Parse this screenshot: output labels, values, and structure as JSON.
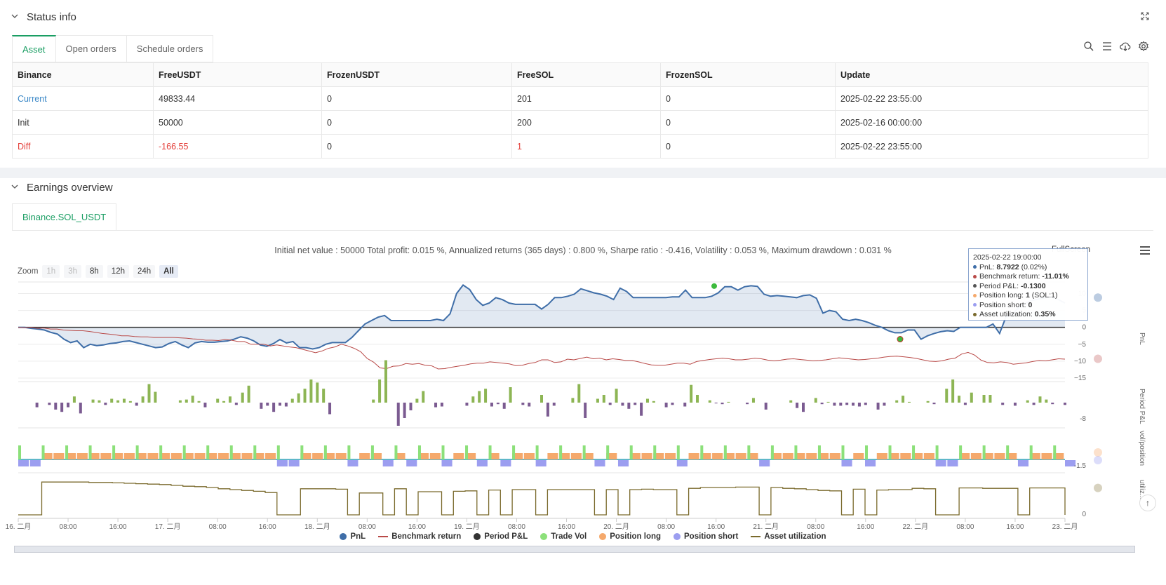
{
  "status": {
    "title": "Status info",
    "tabs": [
      "Asset",
      "Open orders",
      "Schedule orders"
    ],
    "table": {
      "headers": [
        "Binance",
        "FreeUSDT",
        "FrozenUSDT",
        "FreeSOL",
        "FrozenSOL",
        "Update"
      ],
      "rows": [
        [
          "Current",
          "49833.44",
          "0",
          "201",
          "0",
          "2025-02-22 23:55:00"
        ],
        [
          "Init",
          "50000",
          "0",
          "200",
          "0",
          "2025-02-16 00:00:00"
        ],
        [
          "Diff",
          "-166.55",
          "0",
          "1",
          "0",
          "2025-02-22 23:55:00"
        ]
      ]
    },
    "icons": [
      "search-icon",
      "list-icon",
      "cloud-download-icon",
      "gear-icon"
    ]
  },
  "earnings": {
    "title": "Earnings overview",
    "tab": "Binance.SOL_USDT",
    "summary": "Initial net value : 50000 Total profit: 0.015 %, Annualized returns (365 days) : 0.800 %, Sharpe ratio : -0.416, Volatility : 0.053 %, Maximum drawdown : 0.031 %",
    "zoom_label": "Zoom",
    "zoom_buttons": [
      "1h",
      "3h",
      "8h",
      "12h",
      "24h",
      "All"
    ],
    "fullscreen": "FullScreen",
    "tooltip": {
      "time": "2025-02-22 19:00:00",
      "pnl_label": "PnL: ",
      "pnl_value": "8.7922",
      "pnl_extra": " (0.02%)",
      "bench_label": "Benchmark return: ",
      "bench_value": "-11.01%",
      "period_label": "Period P&L: ",
      "period_value": "-0.1300",
      "long_label": "Position long: ",
      "long_value": "1",
      "long_extra": " (SOL:1)",
      "short_label": "Position short: ",
      "short_value": "0",
      "util_label": "Asset utilization: ",
      "util_value": "0.35%"
    },
    "legend": [
      "PnL",
      "Benchmark return",
      "Period P&L",
      "Trade Vol",
      "Position long",
      "Position short",
      "Asset utilization"
    ],
    "colors": {
      "pnl": "#3f6ea8",
      "bench": "#b94a48",
      "period_pos": "#8db554",
      "period_neg": "#7b5b91",
      "trade_vol": "#8ce07a",
      "long": "#f5a96c",
      "short": "#9c9ef0",
      "util": "#7a6a2c"
    }
  },
  "chart_data": {
    "type": "line",
    "x_ticks": [
      "16. 二月",
      "08:00",
      "16:00",
      "17. 二月",
      "08:00",
      "16:00",
      "18. 二月",
      "08:00",
      "16:00",
      "19. 二月",
      "08:00",
      "16:00",
      "20. 二月",
      "08:00",
      "16:00",
      "21. 二月",
      "08:00",
      "16:00",
      "22. 二月",
      "08:00",
      "16:00",
      "23. 二月"
    ],
    "pnl_axis": {
      "ticks": [
        10,
        5,
        0,
        -5,
        -10,
        -15
      ],
      "ylabel": "PnL",
      "ylim": [
        -15,
        13
      ]
    },
    "period_axis": {
      "ticks": [
        -8
      ],
      "ylabel": "Period P&L"
    },
    "vol_axis": {
      "ticks": [
        -1.5
      ],
      "ylabel": "vol/position"
    },
    "util_axis": {
      "ticks": [
        0
      ],
      "ylabel": "utiliz...n"
    },
    "series": [
      {
        "name": "PnL",
        "values": [
          0,
          0,
          -0.3,
          -0.5,
          -0.8,
          -1.5,
          -2,
          -3.5,
          -4.5,
          -4,
          -6,
          -5,
          -5.4,
          -5.2,
          -4.8,
          -4.6,
          -4.2,
          -4,
          -4.5,
          -5,
          -5.5,
          -6,
          -5.8,
          -4.8,
          -4.2,
          -5.2,
          -6,
          -4.6,
          -4.2,
          -4.4,
          -4.4,
          -4.2,
          -4,
          -3.5,
          -2.8,
          -3.2,
          -4,
          -5.2,
          -5.6,
          -4.8,
          -3.6,
          -4.6,
          -4.2,
          -6,
          -6,
          -6.4,
          -6,
          -5,
          -4.5,
          -4.5,
          -4.5,
          -3,
          -1,
          1,
          2,
          3,
          3.5,
          2,
          2,
          2,
          2,
          2,
          2,
          2,
          2.4,
          2,
          4,
          10,
          12.5,
          11.2,
          8.2,
          6.5,
          7.2,
          8.8,
          8.2,
          7.2,
          6.8,
          6.8,
          6.8,
          6.8,
          5.4,
          6.8,
          8.8,
          8.8,
          9.2,
          9.8,
          11.4,
          10.8,
          10.2,
          9.8,
          9.2,
          8.2,
          11.6,
          10.6,
          8.8,
          8.8,
          8.8,
          8.8,
          8.8,
          8.8,
          9,
          9,
          11,
          8.8,
          8.8,
          8.8,
          9.2,
          10.2,
          12,
          12,
          11,
          12,
          12.3,
          12.1,
          9.8,
          9.2,
          9.4,
          9.2,
          9,
          8.8,
          9.4,
          9.6,
          8.6,
          4.2,
          5,
          4.6,
          2.4,
          2,
          2.4,
          2,
          1.4,
          0.6,
          0,
          -1,
          -1.6,
          -1.6,
          -0.8,
          -0.8,
          -3.5,
          -2.5,
          -1.8,
          -1.3,
          -1,
          -1.2,
          0,
          0,
          0,
          0,
          0,
          1,
          -1.8,
          3.2,
          4,
          6,
          7.2,
          8,
          8.4,
          8.8,
          9,
          8.2,
          7.2
        ]
      },
      {
        "name": "Benchmark return",
        "values": [
          0,
          -0.1,
          0,
          -0.3,
          -0.2,
          -0.5,
          -0.5,
          -0.8,
          -0.9,
          -1,
          -1,
          -1.2,
          -1.5,
          -1.8,
          -2,
          -2.2,
          -2.5,
          -2.5,
          -2.7,
          -2.8,
          -2.8,
          -3,
          -3,
          -3,
          -3,
          -3.1,
          -3.2,
          -3.4,
          -3.5,
          -3.8,
          -3.8,
          -3.9,
          -3.6,
          -3.8,
          -4.2,
          -4.2,
          -5,
          -5,
          -5,
          -5.5,
          -5.2,
          -5.5,
          -5.8,
          -6,
          -6.5,
          -7,
          -7.5,
          -7,
          -6.2,
          -5.8,
          -5,
          -5.5,
          -6.2,
          -7.2,
          -9.2,
          -10.3,
          -12,
          -12.2,
          -11.5,
          -11.4,
          -10.7,
          -10.9,
          -10.7,
          -11.2,
          -11.4,
          -12.3,
          -12.2,
          -11.8,
          -11.5,
          -11.2,
          -10.8,
          -10.6,
          -10.6,
          -10.2,
          -10.4,
          -10.6,
          -10.8,
          -11.3,
          -11.2,
          -10.7,
          -10.4,
          -9.6,
          -9.6,
          -10.4,
          -10.2,
          -9.4,
          -9.6,
          -9.2,
          -8.8,
          -9.3,
          -9.1,
          -9.6,
          -9.3,
          -9.5,
          -9.8,
          -9.8,
          -10.2,
          -10.7,
          -11.1,
          -11.2,
          -11.2,
          -10.9,
          -10.6,
          -10.6,
          -10.9,
          -10.1,
          -9.8,
          -9.5,
          -9.3,
          -9.1,
          -9.3,
          -9.6,
          -9.6,
          -9.4,
          -9.1,
          -9.3,
          -9.7,
          -9.9,
          -9.7,
          -9.4,
          -9.3,
          -9.5,
          -9.7,
          -9.9,
          -9.8,
          -9.6,
          -9.3,
          -9,
          -9.2,
          -9.4,
          -9.6,
          -9.5,
          -9.3,
          -9.1,
          -8.8,
          -8.6,
          -8.5,
          -8.7,
          -8.9,
          -9.2,
          -9.6,
          -10,
          -10.1,
          -9.9,
          -9.4,
          -9.1,
          -7.9,
          -7.4,
          -8.2,
          -9.7,
          -10.4,
          -10.5,
          -10.2,
          -10.4,
          -10.9,
          -10.7,
          -10.5,
          -10.1,
          -9.8,
          -9.9,
          -9.6,
          -9.3,
          -9.4
        ]
      },
      {
        "name": "Period P&L",
        "values": [
          0,
          0,
          0,
          -0.6,
          0,
          -0.3,
          -0.9,
          -1.2,
          -0.6,
          0.8,
          -1.4,
          0,
          0.4,
          0.3,
          -0.3,
          0.5,
          0.3,
          0.5,
          0.2,
          -0.4,
          0.8,
          2.4,
          1.4,
          0,
          0,
          0,
          0.3,
          0.4,
          0.9,
          0.2,
          -0.6,
          0,
          0.5,
          0.2,
          0.8,
          -0.3,
          1.3,
          2.2,
          0,
          -0.8,
          -0.4,
          -1.2,
          -0.4,
          -0.5,
          0.5,
          1.2,
          1.8,
          3,
          2.6,
          1.8,
          -1.5,
          0,
          0,
          0,
          0,
          0,
          0,
          0.4,
          3,
          5.5,
          0,
          -3,
          -2,
          -1,
          0.5,
          1.5,
          0,
          -0.6,
          -0.5,
          0,
          0,
          0,
          -0.4,
          0.8,
          1.5,
          1.8,
          -0.5,
          -0.2,
          -0.8,
          2,
          0,
          -0.3,
          -0.5,
          0,
          1,
          -1.8,
          -0.4,
          0,
          0,
          0.6,
          2.4,
          -2,
          0,
          0.5,
          1,
          -0.3,
          1.8,
          -0.4,
          -0.8,
          -0.3,
          -1.7,
          0.5,
          0.2,
          0,
          -0.6,
          -0.3,
          0,
          -0.5,
          2.3,
          1,
          0,
          0.3,
          -0.1,
          -0.2,
          0.1,
          0,
          0,
          -0.2,
          0.6,
          0,
          -0.9,
          0,
          0,
          0,
          0.3,
          -0.7,
          -1.2,
          0,
          0.6,
          -0.2,
          0.1,
          -0.4,
          -0.4,
          -0.3,
          -0.4,
          -0.5,
          -0.3,
          0,
          -0.9,
          -0.4,
          0,
          0.3,
          0.9,
          0.1,
          0,
          0,
          0.2,
          -0.2,
          0,
          1.8,
          3,
          0.9,
          -0.3,
          1.3,
          0,
          1,
          1,
          0,
          -0.3,
          0,
          -0.4,
          0,
          0.3,
          -0.3,
          0.8,
          0.4,
          -0.2,
          0,
          -0.3
        ]
      },
      {
        "name": "Asset utilization",
        "values": [
          0,
          0,
          0.78,
          0.78,
          0.78,
          0.78,
          0.77,
          0.77,
          0.76,
          0.75,
          0.74,
          0.73,
          0.72,
          0.7,
          0.68,
          0.67,
          0.65,
          0.62,
          0.6,
          0.58,
          0.56,
          0.53,
          0,
          0,
          0.62,
          0.62,
          0.62,
          0.61,
          0,
          0.52,
          0.52,
          0,
          0.62,
          0,
          0.55,
          0.55,
          0,
          0.56,
          0.57,
          0,
          0.59,
          0,
          0.6,
          0.6,
          0,
          0.6,
          0.6,
          0.6,
          0.6,
          0,
          0.6,
          0,
          0.6,
          0.61,
          0.6,
          0.6,
          0,
          0.63,
          0.65,
          0.65,
          0.65,
          0.66,
          0.66,
          0,
          0.65,
          0.63,
          0.62,
          0.6,
          0.58,
          0.57,
          0,
          0.61,
          0,
          0.59,
          0.6,
          0.6,
          0.63,
          0.62,
          0,
          0,
          0.64,
          0.64,
          0.63,
          0.63,
          0.63,
          0,
          0.64,
          0.64,
          0.64,
          0
        ]
      }
    ]
  }
}
